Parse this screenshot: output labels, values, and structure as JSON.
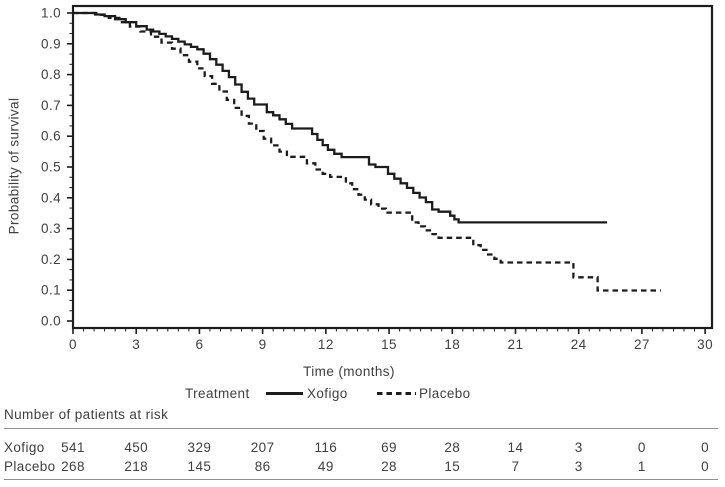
{
  "chart_data": {
    "type": "line",
    "subtype": "kaplan_meier_step",
    "title": "",
    "xlabel": "Time (months)",
    "ylabel": "Probability of survival",
    "xlim": [
      0,
      30
    ],
    "ylim": [
      0.0,
      1.0
    ],
    "x_ticks": [
      0,
      3,
      6,
      9,
      12,
      15,
      18,
      21,
      24,
      27,
      30
    ],
    "y_ticks": [
      1.0,
      0.9,
      0.8,
      0.7,
      0.6,
      0.5,
      0.4,
      0.3,
      0.2,
      0.1,
      0.0
    ],
    "grid": false,
    "legend": {
      "title": "Treatment",
      "position": "below-axis",
      "entries": [
        {
          "label": "Xofigo",
          "line_style": "solid"
        },
        {
          "label": "Placebo",
          "line_style": "dashed"
        }
      ]
    },
    "series": [
      {
        "name": "Xofigo",
        "line_style": "solid",
        "points": [
          [
            0,
            1.0
          ],
          [
            1.05,
            0.995
          ],
          [
            1.5,
            0.99
          ],
          [
            2.0,
            0.98
          ],
          [
            2.5,
            0.97
          ],
          [
            3.0,
            0.957
          ],
          [
            3.5,
            0.946
          ],
          [
            3.8,
            0.94
          ],
          [
            4.1,
            0.932
          ],
          [
            4.4,
            0.924
          ],
          [
            4.7,
            0.916
          ],
          [
            5.0,
            0.907
          ],
          [
            5.3,
            0.898
          ],
          [
            5.6,
            0.89
          ],
          [
            5.9,
            0.882
          ],
          [
            6.2,
            0.868
          ],
          [
            6.5,
            0.85
          ],
          [
            6.8,
            0.832
          ],
          [
            7.1,
            0.812
          ],
          [
            7.4,
            0.792
          ],
          [
            7.7,
            0.768
          ],
          [
            8.0,
            0.744
          ],
          [
            8.3,
            0.722
          ],
          [
            8.6,
            0.703
          ],
          [
            9.2,
            0.678
          ],
          [
            9.5,
            0.668
          ],
          [
            9.8,
            0.655
          ],
          [
            10.1,
            0.64
          ],
          [
            10.4,
            0.625
          ],
          [
            11.35,
            0.607
          ],
          [
            11.6,
            0.588
          ],
          [
            11.85,
            0.571
          ],
          [
            12.1,
            0.556
          ],
          [
            12.4,
            0.543
          ],
          [
            12.75,
            0.532
          ],
          [
            14.05,
            0.508
          ],
          [
            14.35,
            0.5
          ],
          [
            14.95,
            0.478
          ],
          [
            15.25,
            0.462
          ],
          [
            15.55,
            0.447
          ],
          [
            15.85,
            0.432
          ],
          [
            16.15,
            0.416
          ],
          [
            16.45,
            0.401
          ],
          [
            16.75,
            0.386
          ],
          [
            17.05,
            0.362
          ],
          [
            17.35,
            0.355
          ],
          [
            17.9,
            0.342
          ],
          [
            18.1,
            0.33
          ],
          [
            18.3,
            0.32
          ],
          [
            25.35,
            0.32
          ]
        ]
      },
      {
        "name": "Placebo",
        "line_style": "dashed",
        "points": [
          [
            0,
            1.0
          ],
          [
            1.2,
            0.994
          ],
          [
            1.7,
            0.984
          ],
          [
            2.2,
            0.97
          ],
          [
            2.7,
            0.956
          ],
          [
            3.2,
            0.94
          ],
          [
            3.7,
            0.923
          ],
          [
            4.2,
            0.904
          ],
          [
            4.7,
            0.884
          ],
          [
            5.1,
            0.863
          ],
          [
            5.5,
            0.842
          ],
          [
            5.9,
            0.82
          ],
          [
            6.25,
            0.795
          ],
          [
            6.6,
            0.77
          ],
          [
            6.95,
            0.745
          ],
          [
            7.3,
            0.718
          ],
          [
            7.65,
            0.692
          ],
          [
            8.0,
            0.666
          ],
          [
            8.35,
            0.641
          ],
          [
            8.7,
            0.617
          ],
          [
            9.05,
            0.592
          ],
          [
            9.4,
            0.57
          ],
          [
            9.8,
            0.55
          ],
          [
            10.15,
            0.533
          ],
          [
            11.1,
            0.512
          ],
          [
            11.5,
            0.492
          ],
          [
            11.85,
            0.478
          ],
          [
            12.2,
            0.468
          ],
          [
            12.95,
            0.447
          ],
          [
            13.25,
            0.428
          ],
          [
            13.55,
            0.41
          ],
          [
            13.85,
            0.394
          ],
          [
            14.15,
            0.379
          ],
          [
            14.5,
            0.365
          ],
          [
            14.85,
            0.352
          ],
          [
            16.1,
            0.32
          ],
          [
            16.4,
            0.307
          ],
          [
            16.7,
            0.294
          ],
          [
            17.0,
            0.282
          ],
          [
            17.35,
            0.27
          ],
          [
            19.0,
            0.246
          ],
          [
            19.35,
            0.231
          ],
          [
            19.7,
            0.216
          ],
          [
            20.0,
            0.202
          ],
          [
            20.3,
            0.19
          ],
          [
            23.75,
            0.142
          ],
          [
            24.9,
            0.099
          ],
          [
            27.9,
            0.099
          ]
        ]
      }
    ],
    "at_risk_table": {
      "title": "Number of patients at risk",
      "time_points": [
        0,
        3,
        6,
        9,
        12,
        15,
        18,
        21,
        24,
        27,
        30
      ],
      "rows": [
        {
          "label": "Xofigo",
          "counts": [
            541,
            450,
            329,
            207,
            116,
            69,
            28,
            14,
            3,
            0,
            0
          ]
        },
        {
          "label": "Placebo",
          "counts": [
            268,
            218,
            145,
            86,
            49,
            28,
            15,
            7,
            3,
            1,
            0
          ]
        }
      ]
    },
    "colors": {
      "line": "#1c1c1c",
      "text": "#404040",
      "rule": "#8f8f8f",
      "background": "#ffffff"
    }
  }
}
